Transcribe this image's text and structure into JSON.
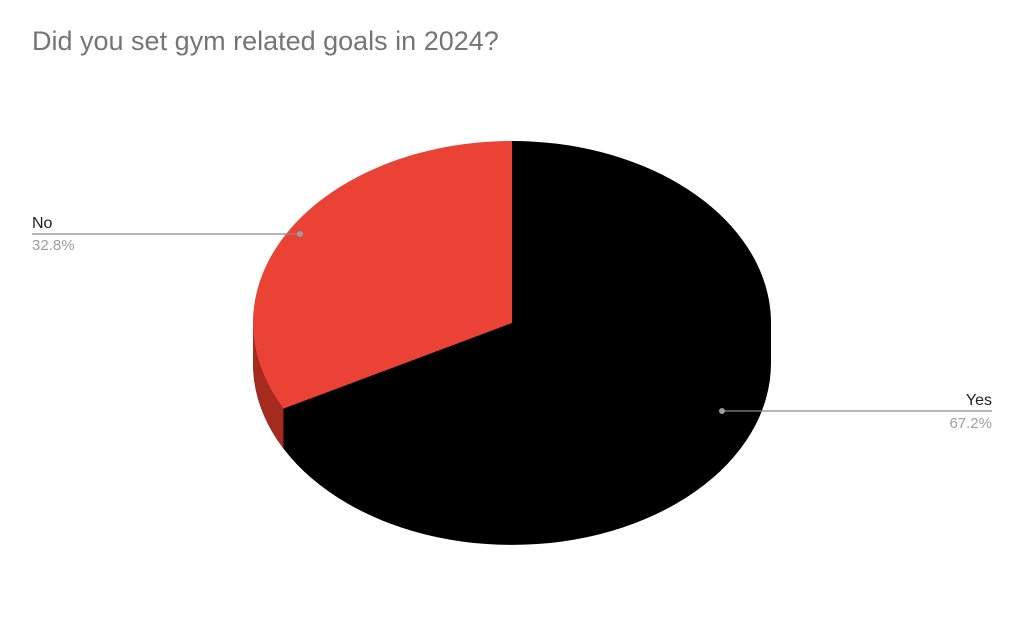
{
  "chart_data": {
    "type": "pie",
    "style": "3d",
    "title": "Did you set gym related goals in 2024?",
    "slices": [
      {
        "label": "Yes",
        "value": 67.2,
        "percent_label": "67.2%",
        "color": "#000000",
        "side_color": "#000000"
      },
      {
        "label": "No",
        "value": 32.8,
        "percent_label": "32.8%",
        "color": "#EA4335",
        "side_color": "#A52A1F"
      }
    ],
    "start_angle": "12 o'clock, clockwise",
    "legend": "labels with leader lines"
  }
}
